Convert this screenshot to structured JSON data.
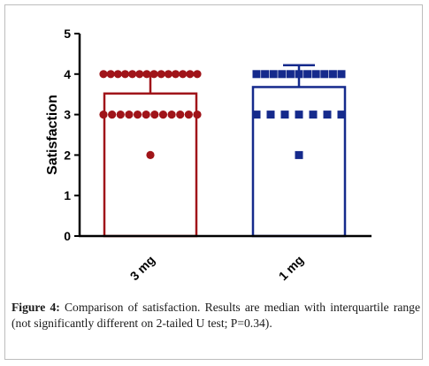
{
  "chart_data": {
    "type": "bar",
    "ylabel": "Satisfaction",
    "ylim": [
      0,
      5
    ],
    "yticks": [
      "0",
      "1",
      "2",
      "3",
      "4",
      "5"
    ],
    "categories": [
      "3 mg",
      "1 mg"
    ],
    "series": [
      {
        "values": [
          3.52,
          3.68
        ],
        "error_upper": [
          4.0,
          4.22
        ],
        "color": "#b0161c",
        "marker": "circle",
        "points": [
          4,
          4,
          4,
          4,
          4,
          4,
          4,
          4,
          4,
          4,
          4,
          4,
          4,
          4,
          3,
          3,
          3,
          3,
          3,
          3,
          3,
          3,
          3,
          3,
          3,
          3,
          2
        ]
      },
      {
        "values": [
          3.68,
          3.68
        ],
        "color": "#1a2a8c",
        "marker": "square",
        "points": [
          4,
          4,
          4,
          4,
          4,
          4,
          4,
          4,
          4,
          4,
          4,
          3,
          3,
          3,
          3,
          3,
          3,
          3,
          2
        ]
      }
    ],
    "bar_colors": [
      "#a01419",
      "#152a8c"
    ],
    "bar_means": [
      3.52,
      3.68
    ],
    "bar_upper": [
      4.0,
      4.22
    ],
    "grid": false
  },
  "caption": {
    "label": "Figure 4:",
    "text": " Comparison of satisfaction. Results are median with interquartile range (not significantly different on 2-tailed U test; P=0.34)."
  }
}
